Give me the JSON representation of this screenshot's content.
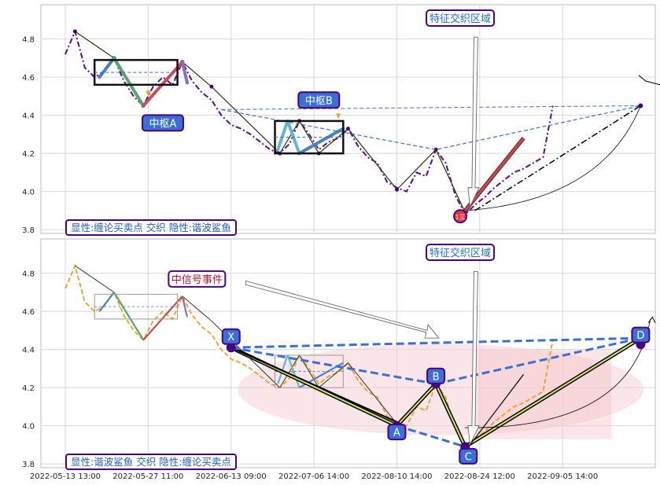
{
  "chart_data": [
    {
      "type": "line",
      "panel": "top",
      "ylim": [
        3.78,
        4.98
      ],
      "yticks": [
        3.8,
        4.0,
        4.2,
        4.4,
        4.6,
        4.8
      ],
      "grid": true,
      "series": [
        {
          "color": "#5a0a8c",
          "style": "dash-dot",
          "x": [
            0,
            1,
            2,
            3,
            4,
            5,
            6,
            7,
            8,
            9,
            10,
            11,
            12,
            13,
            14,
            15,
            16,
            17,
            18,
            19,
            20,
            21,
            22,
            23,
            24,
            25,
            26,
            27,
            28,
            29,
            30,
            31,
            32,
            33,
            34,
            35,
            36,
            37,
            38,
            39,
            40,
            41,
            42,
            43,
            44,
            45,
            46,
            47,
            48,
            49,
            50
          ],
          "y": [
            4.72,
            4.84,
            4.65,
            4.6,
            4.63,
            4.7,
            4.58,
            4.5,
            4.45,
            4.55,
            4.6,
            4.56,
            4.68,
            4.58,
            4.52,
            4.48,
            4.4,
            4.35,
            4.33,
            4.3,
            4.26,
            4.22,
            4.2,
            4.25,
            4.37,
            4.3,
            4.22,
            4.26,
            4.28,
            4.33,
            4.24,
            4.18,
            4.15,
            4.05,
            4.02,
            4.0,
            4.1,
            4.08,
            4.22,
            4.15,
            3.98,
            3.88,
            3.93,
            3.97,
            4.02,
            4.06,
            4.1,
            4.12,
            4.15,
            4.18,
            4.45
          ]
        }
      ],
      "pivots": {
        "x": [
          1,
          5,
          8,
          12,
          15,
          22,
          24,
          26,
          29,
          34,
          38,
          41
        ],
        "y": [
          4.84,
          4.7,
          4.45,
          4.68,
          4.55,
          4.2,
          4.37,
          4.2,
          4.33,
          4.01,
          4.22,
          3.89
        ]
      },
      "zhongshu": [
        {
          "label": "中枢A",
          "x0": 3,
          "x1": 11.5,
          "y0": 4.56,
          "y1": 4.69
        },
        {
          "label": "中枢B",
          "x0": 21.5,
          "x1": 28.5,
          "y0": 4.2,
          "y1": 4.37
        }
      ],
      "annotations": [
        "特征交织区域",
        "中枢A",
        "中枢B"
      ],
      "legend": "显性:缠论买卖点 交织 隐性:谐波鲨鱼",
      "legend_position": "bottom-left",
      "buy_marker": "1三"
    },
    {
      "type": "line",
      "panel": "bottom",
      "ylim": [
        3.78,
        4.98
      ],
      "yticks": [
        3.8,
        4.0,
        4.2,
        4.4,
        4.6,
        4.8
      ],
      "grid": true,
      "series": [
        {
          "color": "#f0a020",
          "style": "dashed",
          "x": [
            0,
            1,
            2,
            3,
            4,
            5,
            6,
            7,
            8,
            9,
            10,
            11,
            12,
            13,
            14,
            15,
            16,
            17,
            18,
            19,
            20,
            21,
            22,
            23,
            24,
            25,
            26,
            27,
            28,
            29,
            30,
            31,
            32,
            33,
            34,
            35,
            36,
            37,
            38,
            39,
            40,
            41,
            42,
            43,
            44,
            45,
            46,
            47,
            48,
            49,
            50
          ],
          "y": [
            4.72,
            4.84,
            4.65,
            4.6,
            4.63,
            4.7,
            4.58,
            4.5,
            4.45,
            4.55,
            4.6,
            4.56,
            4.68,
            4.58,
            4.52,
            4.48,
            4.4,
            4.35,
            4.33,
            4.3,
            4.26,
            4.22,
            4.2,
            4.25,
            4.37,
            4.3,
            4.22,
            4.26,
            4.28,
            4.33,
            4.24,
            4.18,
            4.15,
            4.05,
            4.02,
            4.0,
            4.1,
            4.08,
            4.22,
            4.15,
            3.98,
            3.88,
            3.93,
            3.97,
            4.02,
            4.06,
            4.1,
            4.12,
            4.15,
            4.18,
            4.45
          ]
        }
      ],
      "harmonic": {
        "points": [
          {
            "label": "X",
            "x": 17,
            "y": 4.41
          },
          {
            "label": "A",
            "x": 34,
            "y": 4.0
          },
          {
            "label": "B",
            "x": 38,
            "y": 4.22
          },
          {
            "label": "C",
            "x": 41,
            "y": 3.89
          },
          {
            "label": "D",
            "x": 59,
            "y": 4.46
          }
        ]
      },
      "annotations": [
        "特征交织区域",
        "中信号事件"
      ],
      "legend": "显性:谐波鲨鱼 交织 隐性:缠论买卖点",
      "legend_position": "bottom-left"
    }
  ],
  "x_axis": {
    "tick_labels": [
      "2022-05-13 13:00",
      "2022-05-27 11:00",
      "2022-06-13 09:00",
      "2022-07-06 14:00",
      "2022-08-10 14:00",
      "2022-08-24 12:00",
      "2022-09-05 14:00"
    ],
    "tick_positions": [
      0,
      8.5,
      17,
      25.5,
      34,
      42.5,
      51
    ],
    "xlim": [
      -2.5,
      60.5
    ]
  },
  "colors": {
    "bi_up": "#4a7fc0",
    "bi_green": "#55a868",
    "bi_red": "#c44e52",
    "bi_purple": "#8172b2",
    "bi_cyan": "#64b5cd",
    "zhongshu_box": "#111111",
    "label_fill": "#3a6fd6",
    "label_border": "#4b0082",
    "legend_text": "#1f5fbf",
    "ellipse": "#f7d4d8",
    "buy_dot": "#e8383d"
  }
}
